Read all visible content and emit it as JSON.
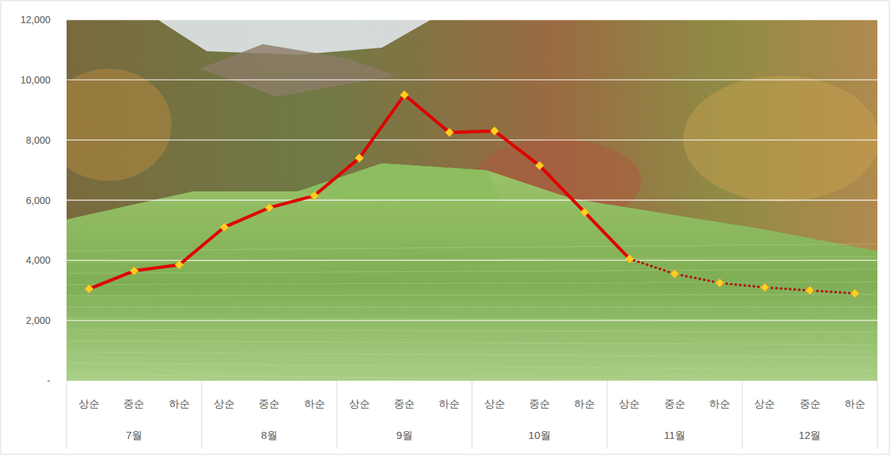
{
  "chart_data": {
    "type": "line",
    "categories": [
      "상순",
      "중순",
      "하순",
      "상순",
      "중순",
      "하순",
      "상순",
      "중순",
      "하순",
      "상순",
      "중순",
      "하순",
      "상순",
      "중순",
      "하순",
      "상순",
      "중순",
      "하순"
    ],
    "category_groups": [
      "7월",
      "8월",
      "9월",
      "10월",
      "11월",
      "12월"
    ],
    "series": [
      {
        "color": "#e00000",
        "line_style": "solid",
        "marker": "diamond",
        "values": [
          3050,
          3650,
          3850,
          5100,
          5750,
          6150,
          7400,
          9500,
          8250,
          8300,
          7150,
          5600,
          4050,
          null,
          null,
          null,
          null,
          null
        ]
      },
      {
        "color": "#9b1c1c",
        "line_style": "dotted",
        "marker": "diamond",
        "values": [
          null,
          null,
          null,
          null,
          null,
          null,
          null,
          null,
          null,
          null,
          null,
          null,
          4050,
          3550,
          3250,
          3100,
          3000,
          2900
        ]
      }
    ],
    "ylim": [
      0,
      12000
    ],
    "yticks": [
      {
        "value": 0,
        "label": "-"
      },
      {
        "value": 2000,
        "label": "2,000"
      },
      {
        "value": 4000,
        "label": "4,000"
      },
      {
        "value": 6000,
        "label": "6,000"
      },
      {
        "value": 8000,
        "label": "8,000"
      },
      {
        "value": 10000,
        "label": "10,000"
      },
      {
        "value": 12000,
        "label": "12,000"
      }
    ],
    "grid": true
  }
}
